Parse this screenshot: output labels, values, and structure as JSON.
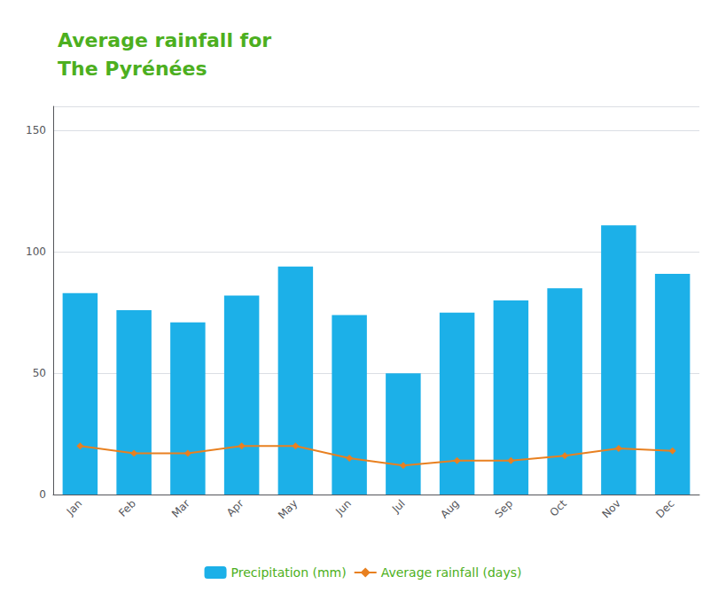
{
  "chart_data": {
    "type": "bar",
    "title": "Average rainfall for\nThe Pyrénées",
    "categories": [
      "Jan",
      "Feb",
      "Mar",
      "Apr",
      "May",
      "Jun",
      "Jul",
      "Aug",
      "Sep",
      "Oct",
      "Nov",
      "Dec"
    ],
    "series": [
      {
        "name": "Precipitation (mm)",
        "type": "bar",
        "color": "#1cb0e8",
        "values": [
          83,
          76,
          71,
          82,
          94,
          74,
          50,
          75,
          80,
          85,
          111,
          91
        ]
      },
      {
        "name": "Average rainfall (days)",
        "type": "line",
        "color": "#e88020",
        "marker": "diamond",
        "values": [
          20,
          17,
          17,
          20,
          20,
          15,
          12,
          14,
          14,
          16,
          19,
          18
        ]
      }
    ],
    "ylim": [
      0,
      160
    ],
    "yticks": [
      0,
      50,
      100,
      150
    ],
    "grid": true,
    "legend": "bottom"
  }
}
